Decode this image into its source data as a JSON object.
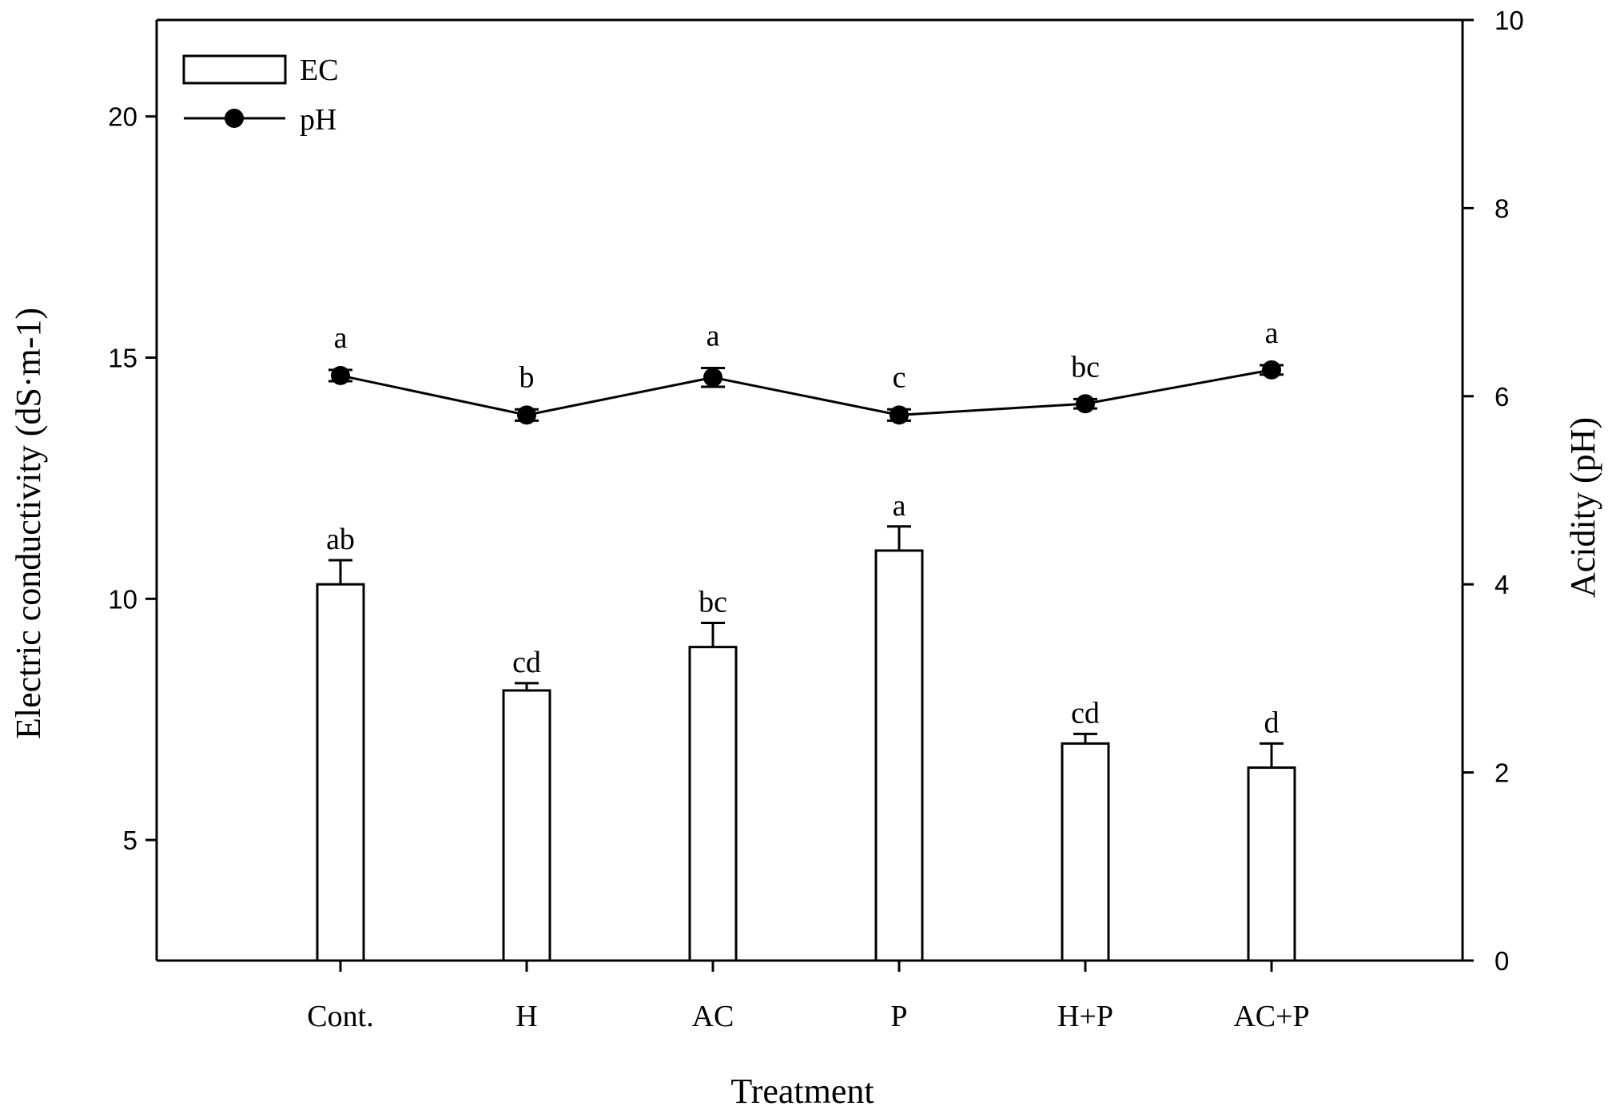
{
  "chart_data": {
    "type": "bar",
    "categories": [
      "Cont.",
      "H",
      "AC",
      "P",
      "H+P",
      "AC+P"
    ],
    "xlabel": "Treatment",
    "ylabel": "Electric conductivity (dS·m-1)",
    "y2label": "Acidity (pH)",
    "ylim": [
      2.5,
      22.0
    ],
    "yticks": [
      5,
      10,
      15,
      20
    ],
    "y2lim": [
      0,
      10
    ],
    "y2ticks": [
      0,
      2,
      4,
      6,
      8,
      10
    ],
    "legend_position": "top-left",
    "grid": false,
    "series": [
      {
        "name": "EC",
        "kind": "bar",
        "axis": "left",
        "values": [
          10.3,
          8.1,
          9.0,
          11.0,
          7.0,
          6.5
        ],
        "errors": [
          0.5,
          0.15,
          0.5,
          0.5,
          0.2,
          0.5
        ],
        "letters": [
          "ab",
          "cd",
          "bc",
          "a",
          "cd",
          "d"
        ]
      },
      {
        "name": "pH",
        "kind": "line",
        "axis": "right",
        "values": [
          6.22,
          5.8,
          6.2,
          5.8,
          5.92,
          6.28
        ],
        "errors": [
          0.06,
          0.06,
          0.1,
          0.06,
          0.05,
          0.05
        ],
        "letters": [
          "a",
          "b",
          "a",
          "c",
          "bc",
          "a"
        ]
      }
    ]
  }
}
